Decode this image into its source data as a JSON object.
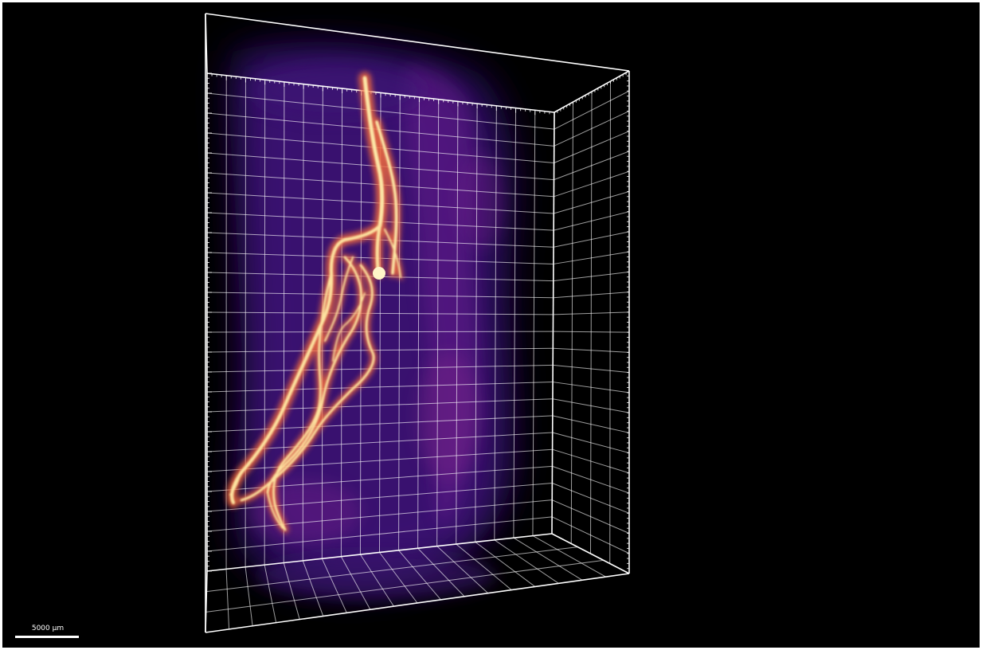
{
  "viewer": {
    "background_color": "#000000",
    "bounding_box_color": "#ffffff",
    "volume_colormap": "magma",
    "colormap_stops": [
      "#0b0420",
      "#3b0f6f",
      "#8c2981",
      "#de4968",
      "#fe9f6d",
      "#fcfdbf"
    ],
    "grid_visible": true,
    "icons": [
      "scale-bar"
    ]
  },
  "scale_bar": {
    "label": "5000 µm"
  }
}
